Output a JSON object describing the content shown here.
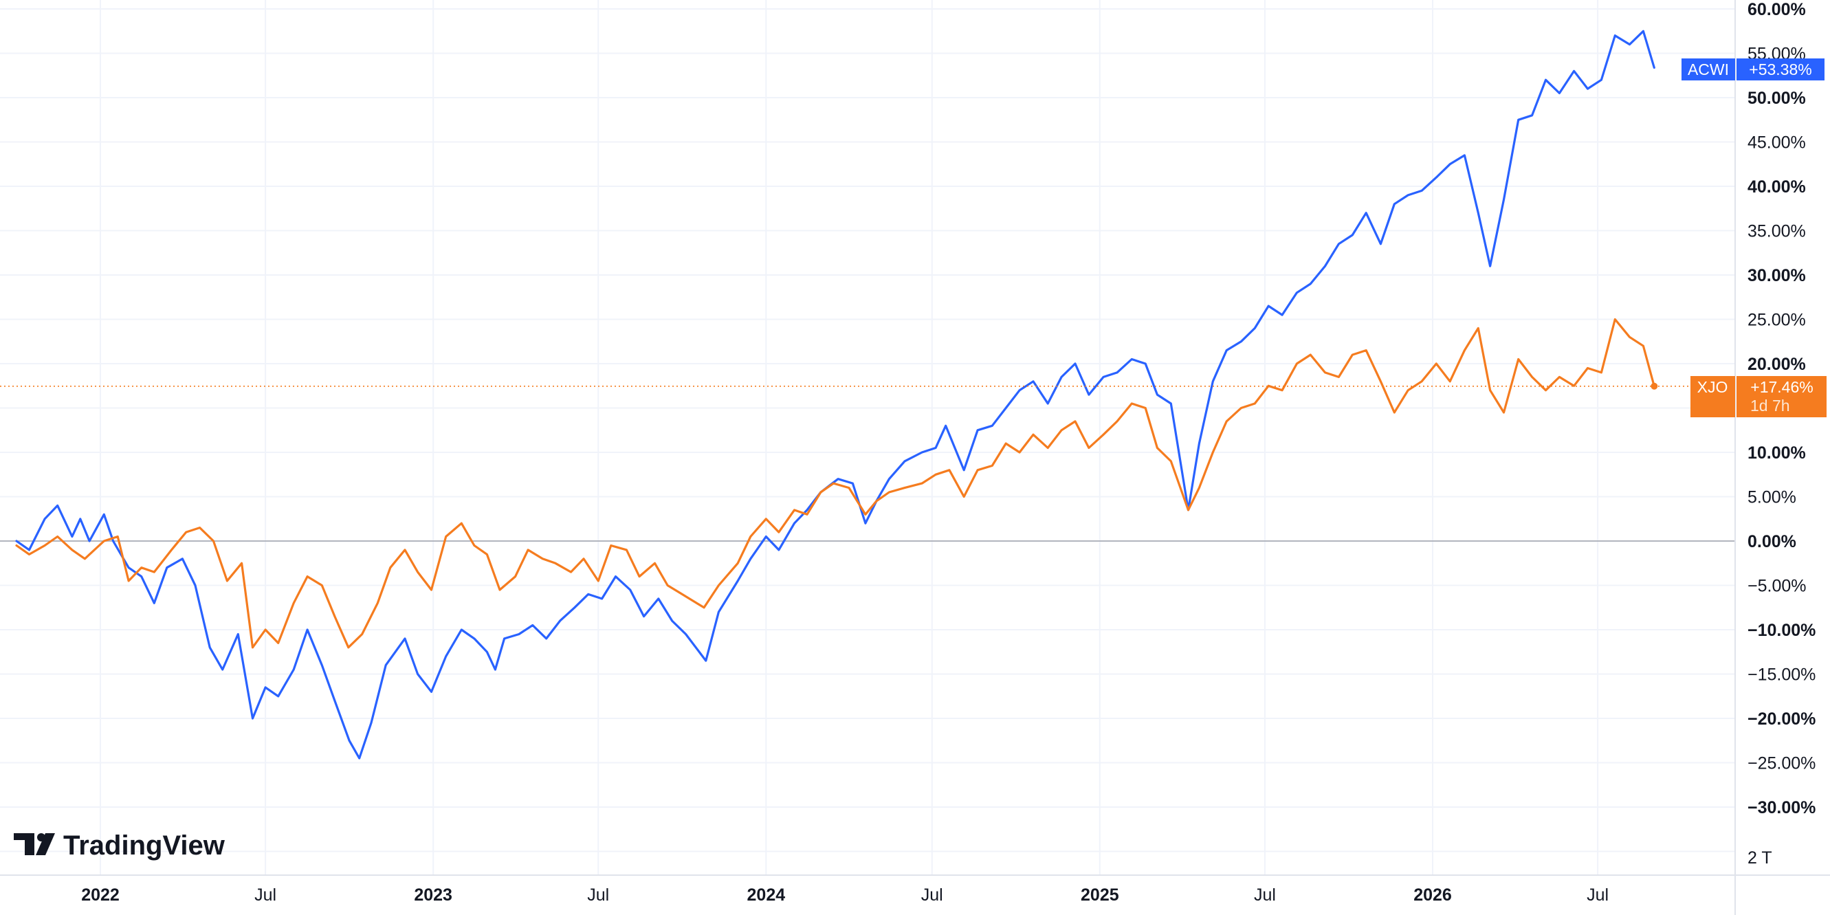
{
  "chart_data": {
    "type": "line",
    "x_axis": {
      "labels": [
        "2022",
        "Jul",
        "2023",
        "Jul",
        "2024",
        "Jul",
        "2025",
        "Jul",
        "2026",
        "Jul"
      ],
      "bold": [
        true,
        false,
        true,
        false,
        true,
        false,
        true,
        false,
        true,
        false
      ],
      "range": [
        "2021-10-01",
        "2026-11-20"
      ]
    },
    "y_axis": {
      "ticks": [
        60,
        55,
        50,
        45,
        40,
        35,
        30,
        25,
        20,
        15,
        10,
        5,
        0,
        -5,
        -10,
        -15,
        -20,
        -25,
        -30
      ],
      "tick_labels": [
        "60.00%",
        "55.00%",
        "50.00%",
        "45.00%",
        "40.00%",
        "35.00%",
        "30.00%",
        "25.00%",
        "20.00%",
        "15.00%",
        "10.00%",
        "5.00%",
        "0.00%",
        "−5.00%",
        "−10.00%",
        "−15.00%",
        "−20.00%",
        "−25.00%",
        "−30.00%"
      ],
      "bold": [
        true,
        false,
        true,
        false,
        true,
        false,
        true,
        false,
        true,
        false,
        true,
        false,
        true,
        false,
        true,
        false,
        true,
        false,
        true
      ],
      "range": [
        -35,
        60
      ],
      "unit": "%",
      "volume_label": "2 T"
    },
    "grid": true,
    "zero_line": true,
    "series": [
      {
        "name": "ACWI",
        "color": "#2962ff",
        "last_label": "+53.38%",
        "points": [
          [
            "2021-10-01",
            0.0
          ],
          [
            "2021-10-15",
            -1.0
          ],
          [
            "2021-11-01",
            2.5
          ],
          [
            "2021-11-15",
            4.0
          ],
          [
            "2021-12-01",
            0.5
          ],
          [
            "2021-12-10",
            2.5
          ],
          [
            "2021-12-20",
            0.0
          ],
          [
            "2022-01-05",
            3.0
          ],
          [
            "2022-01-15",
            0.0
          ],
          [
            "2022-02-01",
            -3.0
          ],
          [
            "2022-02-15",
            -4.0
          ],
          [
            "2022-03-01",
            -7.0
          ],
          [
            "2022-03-15",
            -3.0
          ],
          [
            "2022-04-01",
            -2.0
          ],
          [
            "2022-04-15",
            -5.0
          ],
          [
            "2022-05-01",
            -12.0
          ],
          [
            "2022-05-15",
            -14.5
          ],
          [
            "2022-06-01",
            -10.5
          ],
          [
            "2022-06-17",
            -20.0
          ],
          [
            "2022-07-01",
            -16.5
          ],
          [
            "2022-07-15",
            -17.5
          ],
          [
            "2022-08-01",
            -14.5
          ],
          [
            "2022-08-16",
            -10.0
          ],
          [
            "2022-09-01",
            -14.0
          ],
          [
            "2022-09-15",
            -18.0
          ],
          [
            "2022-10-01",
            -22.5
          ],
          [
            "2022-10-12",
            -24.5
          ],
          [
            "2022-10-25",
            -20.5
          ],
          [
            "2022-11-10",
            -14.0
          ],
          [
            "2022-12-01",
            -11.0
          ],
          [
            "2022-12-15",
            -15.0
          ],
          [
            "2022-12-30",
            -17.0
          ],
          [
            "2023-01-15",
            -13.0
          ],
          [
            "2023-02-01",
            -10.0
          ],
          [
            "2023-02-15",
            -11.0
          ],
          [
            "2023-03-01",
            -12.5
          ],
          [
            "2023-03-10",
            -14.5
          ],
          [
            "2023-03-20",
            -11.0
          ],
          [
            "2023-04-05",
            -10.5
          ],
          [
            "2023-04-20",
            -9.5
          ],
          [
            "2023-05-05",
            -11.0
          ],
          [
            "2023-05-20",
            -9.0
          ],
          [
            "2023-06-05",
            -7.5
          ],
          [
            "2023-06-20",
            -6.0
          ],
          [
            "2023-07-05",
            -6.5
          ],
          [
            "2023-07-20",
            -4.0
          ],
          [
            "2023-08-05",
            -5.5
          ],
          [
            "2023-08-20",
            -8.5
          ],
          [
            "2023-09-05",
            -6.5
          ],
          [
            "2023-09-20",
            -9.0
          ],
          [
            "2023-10-05",
            -10.5
          ],
          [
            "2023-10-27",
            -13.5
          ],
          [
            "2023-11-10",
            -8.0
          ],
          [
            "2023-12-01",
            -4.5
          ],
          [
            "2023-12-15",
            -2.0
          ],
          [
            "2024-01-01",
            0.5
          ],
          [
            "2024-01-15",
            -1.0
          ],
          [
            "2024-02-01",
            2.0
          ],
          [
            "2024-02-15",
            3.5
          ],
          [
            "2024-03-01",
            5.5
          ],
          [
            "2024-03-20",
            7.0
          ],
          [
            "2024-04-05",
            6.5
          ],
          [
            "2024-04-19",
            2.0
          ],
          [
            "2024-05-01",
            4.5
          ],
          [
            "2024-05-15",
            7.0
          ],
          [
            "2024-06-01",
            9.0
          ],
          [
            "2024-06-20",
            10.0
          ],
          [
            "2024-07-05",
            10.5
          ],
          [
            "2024-07-16",
            13.0
          ],
          [
            "2024-08-05",
            8.0
          ],
          [
            "2024-08-20",
            12.5
          ],
          [
            "2024-09-05",
            13.0
          ],
          [
            "2024-09-20",
            15.0
          ],
          [
            "2024-10-05",
            17.0
          ],
          [
            "2024-10-20",
            18.0
          ],
          [
            "2024-11-05",
            15.5
          ],
          [
            "2024-11-20",
            18.5
          ],
          [
            "2024-12-05",
            20.0
          ],
          [
            "2024-12-20",
            16.5
          ],
          [
            "2025-01-05",
            18.5
          ],
          [
            "2025-01-20",
            19.0
          ],
          [
            "2025-02-05",
            20.5
          ],
          [
            "2025-02-20",
            20.0
          ],
          [
            "2025-03-05",
            16.5
          ],
          [
            "2025-03-20",
            15.5
          ],
          [
            "2025-04-08",
            3.5
          ],
          [
            "2025-04-20",
            11.0
          ],
          [
            "2025-05-05",
            18.0
          ],
          [
            "2025-05-20",
            21.5
          ],
          [
            "2025-06-05",
            22.5
          ],
          [
            "2025-06-20",
            24.0
          ],
          [
            "2025-07-05",
            26.5
          ],
          [
            "2025-07-20",
            25.5
          ],
          [
            "2025-08-05",
            28.0
          ],
          [
            "2025-08-20",
            29.0
          ],
          [
            "2025-09-05",
            31.0
          ],
          [
            "2025-09-20",
            33.5
          ],
          [
            "2025-10-05",
            34.5
          ],
          [
            "2025-10-20",
            37.0
          ],
          [
            "2025-11-05",
            33.5
          ],
          [
            "2025-11-20",
            38.0
          ],
          [
            "2025-12-05",
            39.0
          ],
          [
            "2025-12-20",
            39.5
          ],
          [
            "2026-01-05",
            41.0
          ],
          [
            "2026-01-20",
            42.5
          ],
          [
            "2026-02-05",
            43.5
          ],
          [
            "2026-02-20",
            37.0
          ],
          [
            "2026-03-05",
            31.0
          ],
          [
            "2026-03-20",
            38.5
          ],
          [
            "2026-04-05",
            47.5
          ],
          [
            "2026-04-20",
            48.0
          ],
          [
            "2026-05-05",
            52.0
          ],
          [
            "2026-05-20",
            50.5
          ],
          [
            "2026-06-05",
            53.0
          ],
          [
            "2026-06-20",
            51.0
          ],
          [
            "2026-07-05",
            52.0
          ],
          [
            "2026-07-20",
            57.0
          ],
          [
            "2026-08-05",
            56.0
          ],
          [
            "2026-08-20",
            57.5
          ],
          [
            "2026-09-01",
            53.38
          ]
        ]
      },
      {
        "name": "XJO",
        "color": "#f57c1f",
        "last_label": "+17.46%",
        "last_sublabel": "1d 7h",
        "points": [
          [
            "2021-10-01",
            -0.5
          ],
          [
            "2021-10-15",
            -1.5
          ],
          [
            "2021-11-01",
            -0.5
          ],
          [
            "2021-11-15",
            0.5
          ],
          [
            "2021-12-01",
            -1.0
          ],
          [
            "2021-12-15",
            -2.0
          ],
          [
            "2022-01-05",
            0.0
          ],
          [
            "2022-01-20",
            0.5
          ],
          [
            "2022-02-01",
            -4.5
          ],
          [
            "2022-02-15",
            -3.0
          ],
          [
            "2022-03-01",
            -3.5
          ],
          [
            "2022-03-20",
            -1.0
          ],
          [
            "2022-04-05",
            1.0
          ],
          [
            "2022-04-20",
            1.5
          ],
          [
            "2022-05-05",
            0.0
          ],
          [
            "2022-05-20",
            -4.5
          ],
          [
            "2022-06-05",
            -2.5
          ],
          [
            "2022-06-17",
            -12.0
          ],
          [
            "2022-07-01",
            -10.0
          ],
          [
            "2022-07-15",
            -11.5
          ],
          [
            "2022-08-01",
            -7.0
          ],
          [
            "2022-08-16",
            -4.0
          ],
          [
            "2022-09-01",
            -5.0
          ],
          [
            "2022-09-15",
            -8.5
          ],
          [
            "2022-09-30",
            -12.0
          ],
          [
            "2022-10-15",
            -10.5
          ],
          [
            "2022-11-01",
            -7.0
          ],
          [
            "2022-11-15",
            -3.0
          ],
          [
            "2022-12-01",
            -1.0
          ],
          [
            "2022-12-15",
            -3.5
          ],
          [
            "2022-12-30",
            -5.5
          ],
          [
            "2023-01-15",
            0.5
          ],
          [
            "2023-02-01",
            2.0
          ],
          [
            "2023-02-15",
            -0.5
          ],
          [
            "2023-03-01",
            -1.5
          ],
          [
            "2023-03-15",
            -5.5
          ],
          [
            "2023-04-01",
            -4.0
          ],
          [
            "2023-04-15",
            -1.0
          ],
          [
            "2023-05-01",
            -2.0
          ],
          [
            "2023-05-15",
            -2.5
          ],
          [
            "2023-06-01",
            -3.5
          ],
          [
            "2023-06-15",
            -2.0
          ],
          [
            "2023-07-01",
            -4.5
          ],
          [
            "2023-07-15",
            -0.5
          ],
          [
            "2023-08-01",
            -1.0
          ],
          [
            "2023-08-15",
            -4.0
          ],
          [
            "2023-09-01",
            -2.5
          ],
          [
            "2023-09-15",
            -5.0
          ],
          [
            "2023-10-01",
            -6.0
          ],
          [
            "2023-10-25",
            -7.5
          ],
          [
            "2023-11-10",
            -5.0
          ],
          [
            "2023-12-01",
            -2.5
          ],
          [
            "2023-12-15",
            0.5
          ],
          [
            "2024-01-01",
            2.5
          ],
          [
            "2024-01-15",
            1.0
          ],
          [
            "2024-02-01",
            3.5
          ],
          [
            "2024-02-15",
            3.0
          ],
          [
            "2024-03-01",
            5.5
          ],
          [
            "2024-03-15",
            6.5
          ],
          [
            "2024-04-01",
            6.0
          ],
          [
            "2024-04-19",
            3.0
          ],
          [
            "2024-05-01",
            4.5
          ],
          [
            "2024-05-15",
            5.5
          ],
          [
            "2024-06-01",
            6.0
          ],
          [
            "2024-06-20",
            6.5
          ],
          [
            "2024-07-05",
            7.5
          ],
          [
            "2024-07-20",
            8.0
          ],
          [
            "2024-08-05",
            5.0
          ],
          [
            "2024-08-20",
            8.0
          ],
          [
            "2024-09-05",
            8.5
          ],
          [
            "2024-09-20",
            11.0
          ],
          [
            "2024-10-05",
            10.0
          ],
          [
            "2024-10-20",
            12.0
          ],
          [
            "2024-11-05",
            10.5
          ],
          [
            "2024-11-20",
            12.5
          ],
          [
            "2024-12-05",
            13.5
          ],
          [
            "2024-12-20",
            10.5
          ],
          [
            "2025-01-05",
            12.0
          ],
          [
            "2025-01-20",
            13.5
          ],
          [
            "2025-02-05",
            15.5
          ],
          [
            "2025-02-20",
            15.0
          ],
          [
            "2025-03-05",
            10.5
          ],
          [
            "2025-03-20",
            9.0
          ],
          [
            "2025-04-08",
            3.5
          ],
          [
            "2025-04-20",
            6.0
          ],
          [
            "2025-05-05",
            10.0
          ],
          [
            "2025-05-20",
            13.5
          ],
          [
            "2025-06-05",
            15.0
          ],
          [
            "2025-06-20",
            15.5
          ],
          [
            "2025-07-05",
            17.5
          ],
          [
            "2025-07-20",
            17.0
          ],
          [
            "2025-08-05",
            20.0
          ],
          [
            "2025-08-20",
            21.0
          ],
          [
            "2025-09-05",
            19.0
          ],
          [
            "2025-09-20",
            18.5
          ],
          [
            "2025-10-05",
            21.0
          ],
          [
            "2025-10-20",
            21.5
          ],
          [
            "2025-11-05",
            18.0
          ],
          [
            "2025-11-20",
            14.5
          ],
          [
            "2025-12-05",
            17.0
          ],
          [
            "2025-12-20",
            18.0
          ],
          [
            "2026-01-05",
            20.0
          ],
          [
            "2026-01-20",
            18.0
          ],
          [
            "2026-02-05",
            21.5
          ],
          [
            "2026-02-20",
            24.0
          ],
          [
            "2026-03-05",
            17.0
          ],
          [
            "2026-03-20",
            14.5
          ],
          [
            "2026-04-05",
            20.5
          ],
          [
            "2026-04-20",
            18.5
          ],
          [
            "2026-05-05",
            17.0
          ],
          [
            "2026-05-20",
            18.5
          ],
          [
            "2026-06-05",
            17.5
          ],
          [
            "2026-06-20",
            19.5
          ],
          [
            "2026-07-05",
            19.0
          ],
          [
            "2026-07-20",
            25.0
          ],
          [
            "2026-08-05",
            23.0
          ],
          [
            "2026-08-20",
            22.0
          ],
          [
            "2026-09-01",
            17.46
          ]
        ]
      }
    ]
  },
  "branding": {
    "logo_text": "TradingView",
    "logo_mark": "tradingview-logo-mark"
  }
}
